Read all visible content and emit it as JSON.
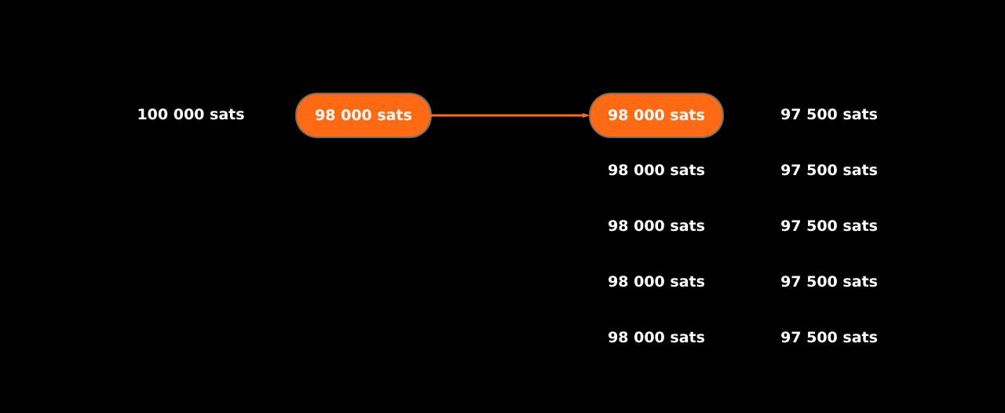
{
  "colors": {
    "background": "#000000",
    "accent": "#ff6a13",
    "text": "#ffffff"
  },
  "initial": {
    "label": "100 000 sats"
  },
  "selected_node": {
    "label": "98 000 sats"
  },
  "column_98000": [
    {
      "label": "98 000 sats",
      "highlighted": true
    },
    {
      "label": "98 000 sats",
      "highlighted": false
    },
    {
      "label": "98 000 sats",
      "highlighted": false
    },
    {
      "label": "98 000 sats",
      "highlighted": false
    },
    {
      "label": "98 000 sats",
      "highlighted": false
    }
  ],
  "column_97500": [
    {
      "label": "97 500 sats"
    },
    {
      "label": "97 500 sats"
    },
    {
      "label": "97 500 sats"
    },
    {
      "label": "97 500 sats"
    },
    {
      "label": "97 500 sats"
    }
  ]
}
